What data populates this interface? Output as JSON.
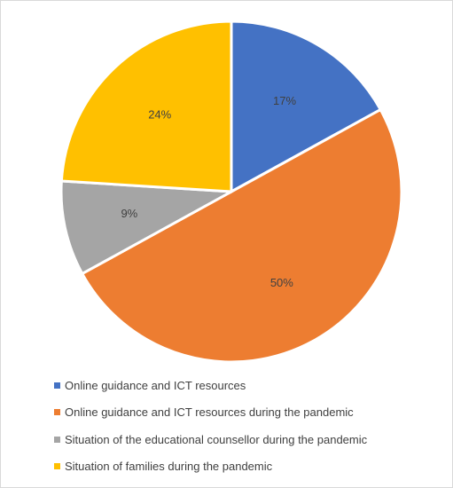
{
  "chart_data": {
    "type": "pie",
    "title": "",
    "slices": [
      {
        "label": "Online guidance and ICT resources",
        "value": 17,
        "value_label": "17%",
        "color": "#4472C4"
      },
      {
        "label": "Online guidance and ICT resources during the pandemic",
        "value": 50,
        "value_label": "50%",
        "color": "#ED7D31"
      },
      {
        "label": "Situation of the educational counsellor during the pandemic",
        "value": 9,
        "value_label": "9%",
        "color": "#A5A5A5"
      },
      {
        "label": "Situation of families during the pandemic",
        "value": 24,
        "value_label": "24%",
        "color": "#FFC000"
      }
    ],
    "start_angle": "12 o'clock",
    "direction": "clockwise",
    "legend_position": "bottom"
  }
}
